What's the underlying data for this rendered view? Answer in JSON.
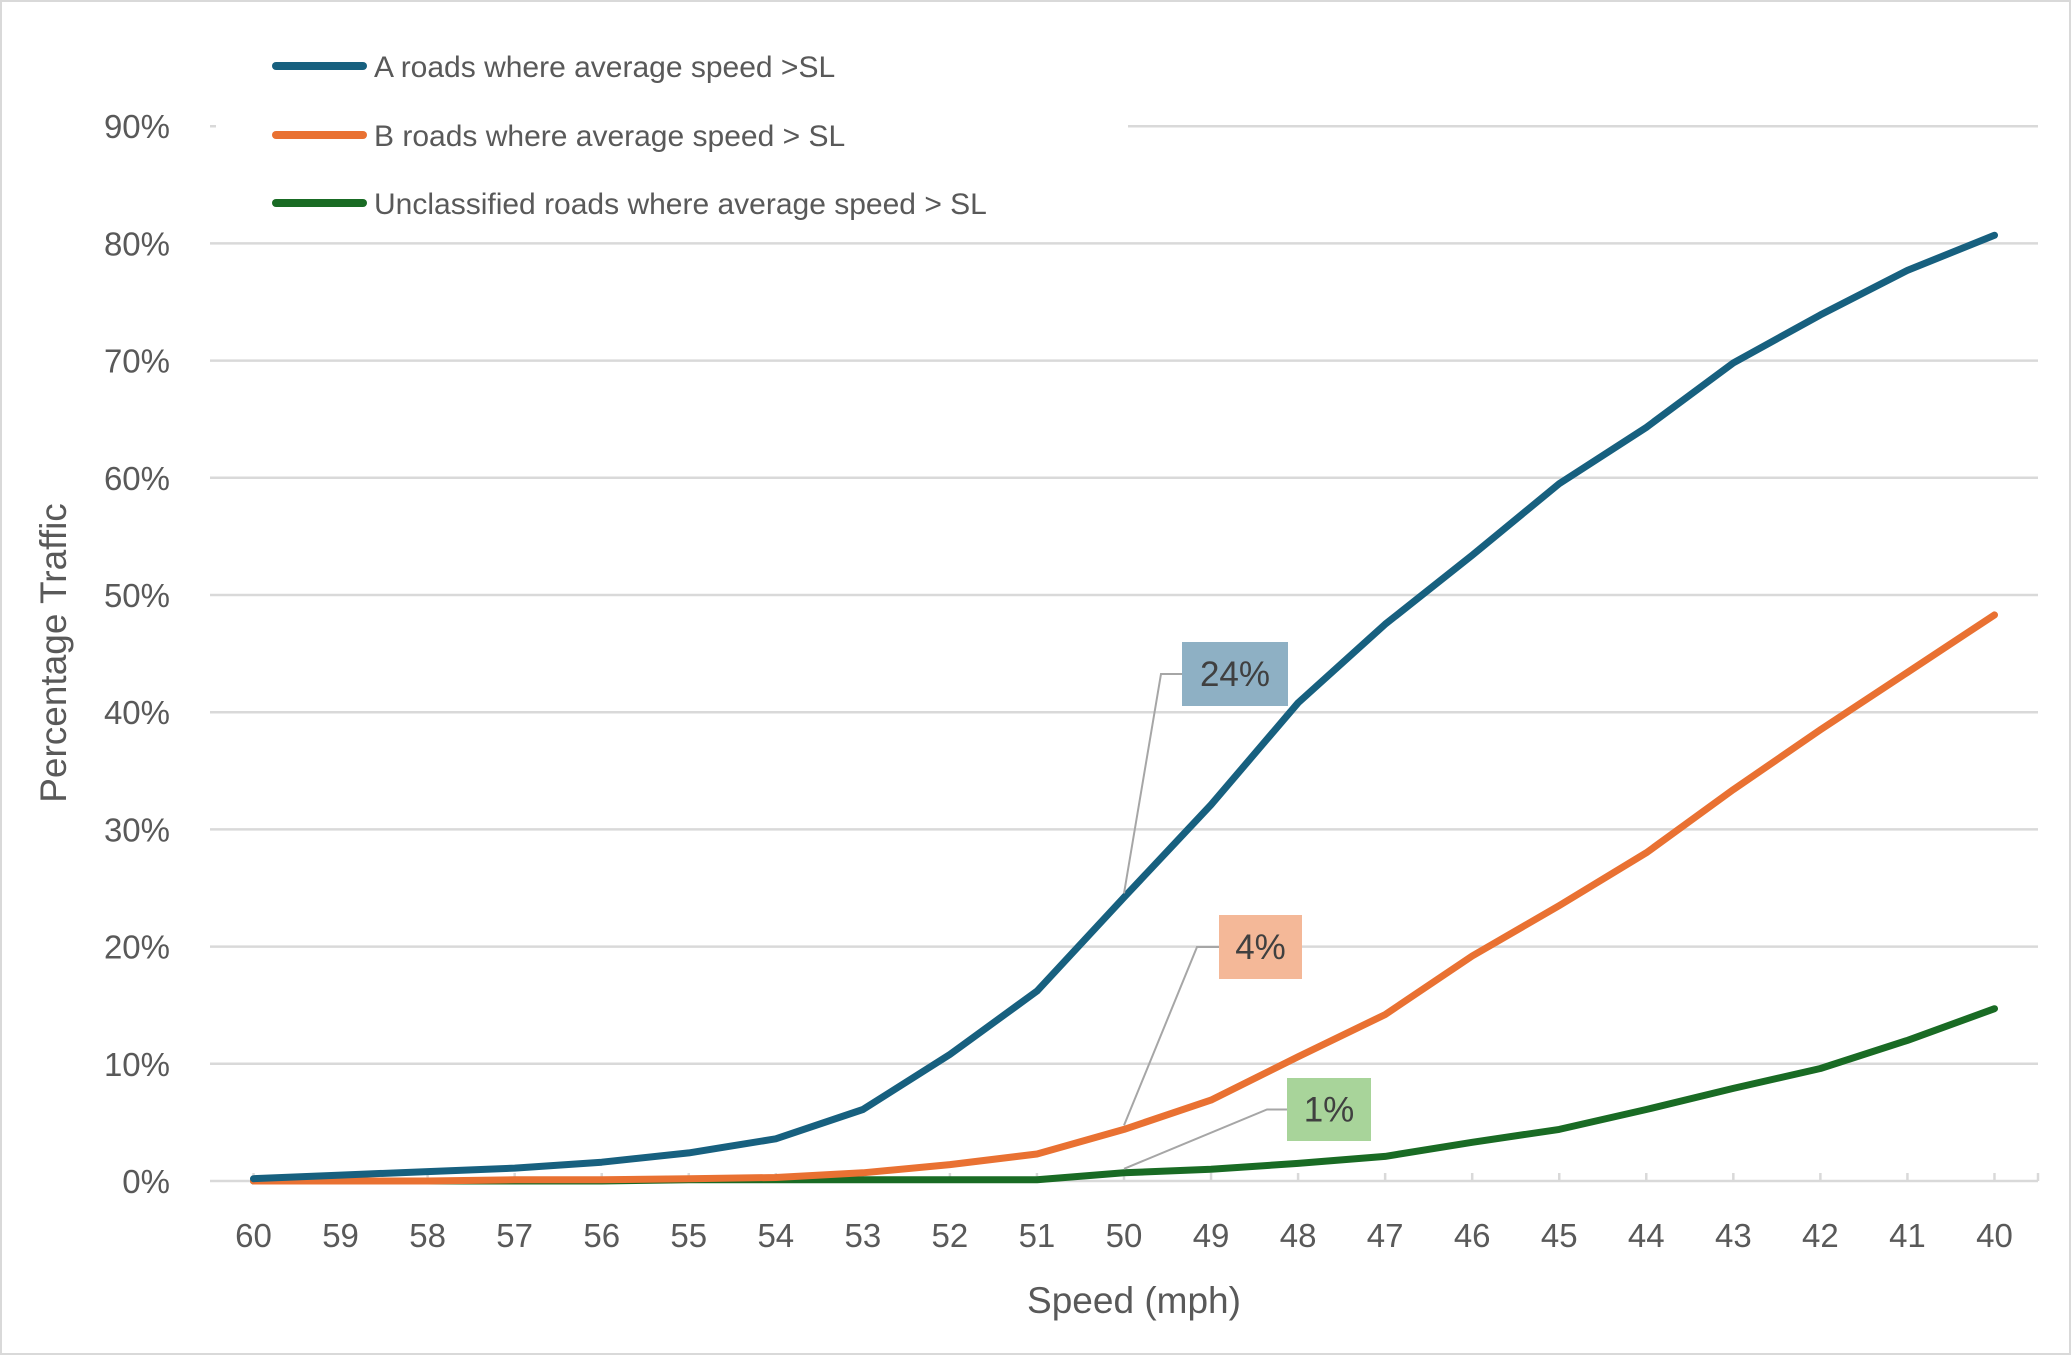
{
  "chart_data": {
    "type": "line",
    "title": "",
    "xlabel": "Speed (mph)",
    "ylabel": "Percentage Traffic",
    "categories": [
      "60",
      "59",
      "58",
      "57",
      "56",
      "55",
      "54",
      "53",
      "52",
      "51",
      "50",
      "49",
      "48",
      "47",
      "46",
      "45",
      "44",
      "43",
      "42",
      "41",
      "40"
    ],
    "y_ticks": [
      "0%",
      "10%",
      "20%",
      "30%",
      "40%",
      "50%",
      "60%",
      "70%",
      "80%",
      "90%"
    ],
    "ylim": [
      0,
      90
    ],
    "grid": true,
    "legend_position": "top-left",
    "series": [
      {
        "name": "A roads where average speed >SL",
        "color": "#17607F",
        "values": [
          0.2,
          0.5,
          0.8,
          1.1,
          1.6,
          2.4,
          3.6,
          6.1,
          10.8,
          16.2,
          24.2,
          32.1,
          40.8,
          47.5,
          53.4,
          59.5,
          64.3,
          69.8,
          73.9,
          77.7,
          80.7
        ]
      },
      {
        "name": "B roads where average speed > SL",
        "color": "#E97132",
        "values": [
          0.0,
          0.0,
          0.0,
          0.1,
          0.1,
          0.2,
          0.3,
          0.7,
          1.4,
          2.3,
          4.4,
          6.9,
          10.6,
          14.2,
          19.2,
          23.5,
          28.0,
          33.4,
          38.5,
          43.4,
          48.3
        ]
      },
      {
        "name": "Unclassified roads where average speed > SL",
        "color": "#196B24",
        "values": [
          0.0,
          0.0,
          0.0,
          0.0,
          0.0,
          0.1,
          0.1,
          0.1,
          0.1,
          0.1,
          0.7,
          1.0,
          1.5,
          2.1,
          3.3,
          4.4,
          6.1,
          7.9,
          9.6,
          12.0,
          14.7
        ]
      }
    ],
    "data_labels": [
      {
        "series": 0,
        "category": "50",
        "text": "24%",
        "fill": "#8EB0C4"
      },
      {
        "series": 1,
        "category": "50",
        "text": "4%",
        "fill": "#F4B898"
      },
      {
        "series": 2,
        "category": "50",
        "text": "1%",
        "fill": "#A8D49A"
      }
    ],
    "colors": {
      "text": "#595959",
      "grid": "#d9d9d9",
      "leader": "#a6a6a6"
    }
  }
}
